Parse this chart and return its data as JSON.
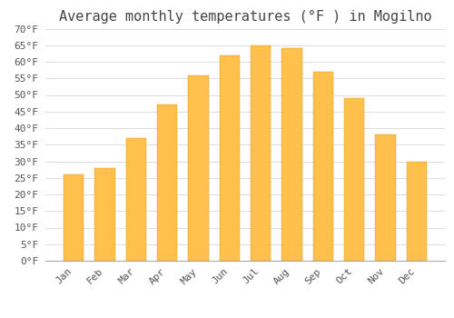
{
  "title": "Average monthly temperatures (°F ) in Mogilno",
  "months": [
    "Jan",
    "Feb",
    "Mar",
    "Apr",
    "May",
    "Jun",
    "Jul",
    "Aug",
    "Sep",
    "Oct",
    "Nov",
    "Dec"
  ],
  "values": [
    26,
    28,
    37,
    47,
    56,
    62,
    65,
    64,
    57,
    49,
    38,
    30
  ],
  "bar_color_top": "#FFC04C",
  "bar_color_bottom": "#F5A623",
  "bar_edge_color": "#E89020",
  "background_color": "#ffffff",
  "plot_bg_color": "#ffffff",
  "grid_color": "#dddddd",
  "text_color": "#555555",
  "ylim": [
    0,
    70
  ],
  "yticks": [
    0,
    5,
    10,
    15,
    20,
    25,
    30,
    35,
    40,
    45,
    50,
    55,
    60,
    65,
    70
  ],
  "title_fontsize": 11,
  "tick_fontsize": 8,
  "bar_width": 0.65
}
